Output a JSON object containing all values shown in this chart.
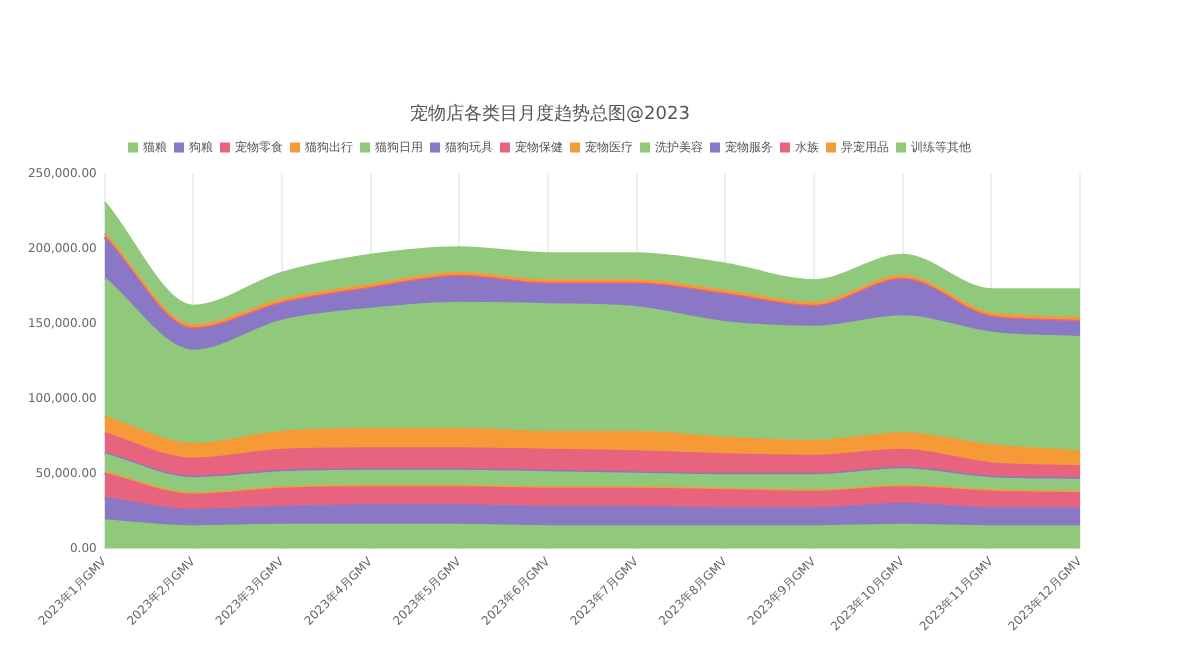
{
  "chart_data": {
    "type": "area",
    "title": "宠物店各类目月度趋势总图@2023",
    "stacked": true,
    "legend": "top",
    "grid": "x",
    "marker": "none",
    "categories": [
      "2023年1月GMV",
      "2023年2月GMV",
      "2023年3月GMV",
      "2023年4月GMV",
      "2023年5月GMV",
      "2023年6月GMV",
      "2023年7月GMV",
      "2023年8月GMV",
      "2023年9月GMV",
      "2023年10月GMV",
      "2023年11月GMV",
      "2023年12月GMV"
    ],
    "ylim": [
      0,
      250000
    ],
    "yticks": [
      {
        "value": 0,
        "label": "0.00"
      },
      {
        "value": 50000,
        "label": "50,000.00"
      },
      {
        "value": 100000,
        "label": "100,000.00"
      },
      {
        "value": 150000,
        "label": "150,000.00"
      },
      {
        "value": 200000,
        "label": "200,000.00"
      },
      {
        "value": 250000,
        "label": "250,000.00"
      }
    ],
    "series": [
      {
        "name": "猫粮",
        "color": "#90c97c",
        "values": [
          19000,
          15000,
          16000,
          16000,
          16000,
          15000,
          15000,
          15000,
          15000,
          16000,
          15000,
          15000
        ]
      },
      {
        "name": "狗粮",
        "color": "#8a78c6",
        "values": [
          15000,
          11000,
          12000,
          13000,
          13000,
          13000,
          13000,
          12000,
          12000,
          14000,
          12000,
          12000
        ]
      },
      {
        "name": "宠物零食",
        "color": "#e8647e",
        "values": [
          16000,
          10000,
          12000,
          12000,
          12000,
          12000,
          12000,
          12000,
          11000,
          11000,
          11000,
          10000
        ]
      },
      {
        "name": "猫狗出行",
        "color": "#f59a36",
        "values": [
          1000,
          1000,
          1000,
          1000,
          1000,
          1000,
          1000,
          1000,
          1000,
          1000,
          1000,
          1000
        ]
      },
      {
        "name": "猫狗日用",
        "color": "#90c97c",
        "values": [
          12000,
          10000,
          10000,
          10000,
          10000,
          10000,
          9000,
          9000,
          10000,
          11000,
          8000,
          8000
        ]
      },
      {
        "name": "猫狗玩具",
        "color": "#8a78c6",
        "values": [
          1000,
          1000,
          1000,
          1000,
          1000,
          1000,
          1000,
          1000,
          1000,
          1000,
          1000,
          1000
        ]
      },
      {
        "name": "宠物保健",
        "color": "#e8647e",
        "values": [
          13000,
          12000,
          14000,
          14000,
          14000,
          14000,
          14000,
          13000,
          12000,
          12000,
          9000,
          8000
        ]
      },
      {
        "name": "宠物医疗",
        "color": "#f59a36",
        "values": [
          11000,
          10000,
          12000,
          13000,
          13000,
          12000,
          13000,
          11000,
          10000,
          11000,
          12000,
          10000
        ]
      },
      {
        "name": "洗护美容",
        "color": "#90c97c",
        "values": [
          92000,
          62000,
          74000,
          80000,
          84000,
          85000,
          83000,
          77000,
          76000,
          78000,
          75000,
          76000
        ]
      },
      {
        "name": "宠物服务",
        "color": "#8a78c6",
        "values": [
          27000,
          14000,
          11000,
          13000,
          17000,
          13000,
          15000,
          18000,
          13000,
          24000,
          10000,
          10000
        ]
      },
      {
        "name": "水族",
        "color": "#e8647e",
        "values": [
          1000,
          1000,
          1000,
          1000,
          1000,
          1000,
          1000,
          1000,
          1000,
          1000,
          1000,
          1000
        ]
      },
      {
        "name": "异宠用品",
        "color": "#f59a36",
        "values": [
          2000,
          2000,
          2000,
          2000,
          2000,
          2000,
          2000,
          2000,
          2000,
          2000,
          2000,
          2000
        ]
      },
      {
        "name": "训练等其他",
        "color": "#90c97c",
        "values": [
          21000,
          13000,
          18000,
          20000,
          17000,
          18000,
          18000,
          18000,
          15000,
          14000,
          16000,
          19000
        ]
      }
    ]
  }
}
